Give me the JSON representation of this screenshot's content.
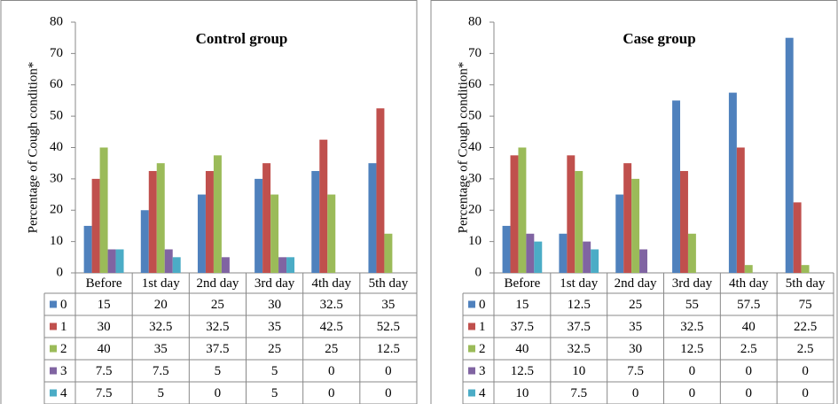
{
  "chart_data": [
    {
      "type": "bar",
      "title": "Control group",
      "ylabel": "Percentage of Cough condition*",
      "categories": [
        "Before",
        "1st day",
        "2nd day",
        "3rd day",
        "4th day",
        "5th day"
      ],
      "series": [
        {
          "name": "0",
          "color": "#4f81bd",
          "values": [
            15,
            20,
            25,
            30,
            32.5,
            35
          ]
        },
        {
          "name": "1",
          "color": "#c0504d",
          "values": [
            30,
            32.5,
            32.5,
            35,
            42.5,
            52.5
          ]
        },
        {
          "name": "2",
          "color": "#9bbb59",
          "values": [
            40,
            35,
            37.5,
            25,
            25,
            12.5
          ]
        },
        {
          "name": "3",
          "color": "#8064a2",
          "values": [
            7.5,
            7.5,
            5,
            5,
            0,
            0
          ]
        },
        {
          "name": "4",
          "color": "#4bacc6",
          "values": [
            7.5,
            5,
            0,
            5,
            0,
            0
          ]
        }
      ],
      "ylim": [
        0,
        80
      ],
      "yticks": [
        0,
        10,
        20,
        30,
        40,
        50,
        60,
        70,
        80
      ]
    },
    {
      "type": "bar",
      "title": "Case group",
      "ylabel": "Percentage of Cough condition*",
      "categories": [
        "Before",
        "1st day",
        "2nd day",
        "3rd day",
        "4th day",
        "5th day"
      ],
      "series": [
        {
          "name": "0",
          "color": "#4f81bd",
          "values": [
            15,
            12.5,
            25,
            55,
            57.5,
            75
          ]
        },
        {
          "name": "1",
          "color": "#c0504d",
          "values": [
            37.5,
            37.5,
            35,
            32.5,
            40,
            22.5
          ]
        },
        {
          "name": "2",
          "color": "#9bbb59",
          "values": [
            40,
            32.5,
            30,
            12.5,
            2.5,
            2.5
          ]
        },
        {
          "name": "3",
          "color": "#8064a2",
          "values": [
            12.5,
            10,
            7.5,
            0,
            0,
            0
          ]
        },
        {
          "name": "4",
          "color": "#4bacc6",
          "values": [
            10,
            7.5,
            0,
            0,
            0,
            0
          ]
        }
      ],
      "ylim": [
        0,
        80
      ],
      "yticks": [
        0,
        10,
        20,
        30,
        40,
        50,
        60,
        70,
        80
      ]
    }
  ]
}
